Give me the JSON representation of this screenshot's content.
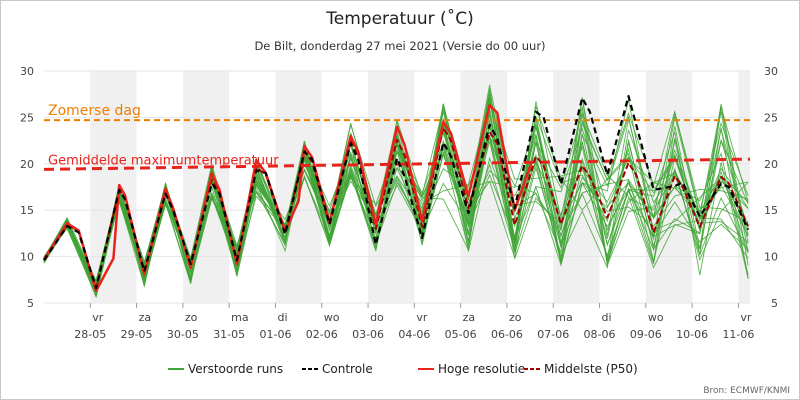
{
  "chart_data": {
    "type": "line",
    "title": "Temperatuur (˚C)",
    "subtitle": "De Bilt, donderdag 27 mei 2021 (Versie do 00 uur)",
    "source": "Bron: ECMWF/KNMI",
    "ylim": [
      5,
      30
    ],
    "y_ticks": [
      "5",
      "10",
      "15",
      "20",
      "25",
      "30"
    ],
    "x_range": [
      "2021-05-27T00:00",
      "2021-06-11T06:00"
    ],
    "grid": "horizontal",
    "legend_position": "bottom",
    "x_ticks": [
      {
        "date": "2021-05-28",
        "day": "vr",
        "label": "28-05"
      },
      {
        "date": "2021-05-29",
        "day": "za",
        "label": "29-05"
      },
      {
        "date": "2021-05-30",
        "day": "zo",
        "label": "30-05"
      },
      {
        "date": "2021-05-31",
        "day": "ma",
        "label": "31-05"
      },
      {
        "date": "2021-06-01",
        "day": "di",
        "label": "01-06"
      },
      {
        "date": "2021-06-02",
        "day": "wo",
        "label": "02-06"
      },
      {
        "date": "2021-06-03",
        "day": "do",
        "label": "03-06"
      },
      {
        "date": "2021-06-04",
        "day": "vr",
        "label": "04-06"
      },
      {
        "date": "2021-06-05",
        "day": "za",
        "label": "05-06"
      },
      {
        "date": "2021-06-06",
        "day": "zo",
        "label": "06-06"
      },
      {
        "date": "2021-06-07",
        "day": "ma",
        "label": "07-06"
      },
      {
        "date": "2021-06-08",
        "day": "di",
        "label": "08-06"
      },
      {
        "date": "2021-06-09",
        "day": "wo",
        "label": "09-06"
      },
      {
        "date": "2021-06-10",
        "day": "do",
        "label": "10-06"
      },
      {
        "date": "2021-06-11",
        "day": "vr",
        "label": "11-06"
      }
    ],
    "reference_lines": [
      {
        "label": "Zomerse dag",
        "color": "#f07d00",
        "style": "dashed",
        "start": 24.7,
        "end": 24.7
      },
      {
        "label": "Gemiddelde maximumtemperatuur",
        "color": "#e8231b",
        "style": "dashed",
        "start": 19.4,
        "end": 20.5
      }
    ],
    "hoge_resolutie": [
      {
        "x": "2021-05-27T00:00",
        "y": 9.7
      },
      {
        "x": "2021-05-27T12:00",
        "y": 13.6
      },
      {
        "x": "2021-05-27T18:00",
        "y": 12.8
      },
      {
        "x": "2021-05-28T03:00",
        "y": 6.3
      },
      {
        "x": "2021-05-28T12:00",
        "y": 9.8
      },
      {
        "x": "2021-05-28T15:00",
        "y": 17.7
      },
      {
        "x": "2021-05-28T18:00",
        "y": 16.6
      },
      {
        "x": "2021-05-29T04:00",
        "y": 8.1
      },
      {
        "x": "2021-05-29T15:00",
        "y": 17.3
      },
      {
        "x": "2021-05-29T19:00",
        "y": 15.2
      },
      {
        "x": "2021-05-30T04:00",
        "y": 8.8
      },
      {
        "x": "2021-05-30T15:00",
        "y": 19.0
      },
      {
        "x": "2021-05-30T19:00",
        "y": 17.2
      },
      {
        "x": "2021-05-31T04:00",
        "y": 9.2
      },
      {
        "x": "2021-05-31T14:00",
        "y": 20.4
      },
      {
        "x": "2021-05-31T19:00",
        "y": 19.0
      },
      {
        "x": "2021-06-01T05:00",
        "y": 12.7
      },
      {
        "x": "2021-06-01T12:00",
        "y": 16.0
      },
      {
        "x": "2021-06-01T15:00",
        "y": 21.9
      },
      {
        "x": "2021-06-01T19:00",
        "y": 20.7
      },
      {
        "x": "2021-06-02T04:00",
        "y": 13.7
      },
      {
        "x": "2021-06-02T15:00",
        "y": 23.0
      },
      {
        "x": "2021-06-02T19:00",
        "y": 21.2
      },
      {
        "x": "2021-06-03T04:00",
        "y": 13.5
      },
      {
        "x": "2021-06-03T15:00",
        "y": 24.0
      },
      {
        "x": "2021-06-03T19:00",
        "y": 22.0
      },
      {
        "x": "2021-06-04T04:00",
        "y": 13.8
      },
      {
        "x": "2021-06-04T15:00",
        "y": 24.5
      },
      {
        "x": "2021-06-04T19:00",
        "y": 23.3
      },
      {
        "x": "2021-06-05T04:00",
        "y": 16.5
      },
      {
        "x": "2021-06-05T15:00",
        "y": 26.3
      },
      {
        "x": "2021-06-05T19:00",
        "y": 25.5
      },
      {
        "x": "2021-06-06T04:00",
        "y": 15.0
      },
      {
        "x": "2021-06-06T13:00",
        "y": 20.3
      }
    ],
    "controle": [
      {
        "x": "2021-05-27T00:00",
        "y": 9.6
      },
      {
        "x": "2021-05-27T12:00",
        "y": 13.3
      },
      {
        "x": "2021-05-27T18:00",
        "y": 12.6
      },
      {
        "x": "2021-05-28T03:00",
        "y": 6.6
      },
      {
        "x": "2021-05-28T15:00",
        "y": 17.2
      },
      {
        "x": "2021-05-28T18:00",
        "y": 16.2
      },
      {
        "x": "2021-05-29T04:00",
        "y": 8.4
      },
      {
        "x": "2021-05-29T15:00",
        "y": 16.8
      },
      {
        "x": "2021-05-29T19:00",
        "y": 15.0
      },
      {
        "x": "2021-05-30T04:00",
        "y": 9.2
      },
      {
        "x": "2021-05-30T15:00",
        "y": 17.9
      },
      {
        "x": "2021-05-30T19:00",
        "y": 16.8
      },
      {
        "x": "2021-05-31T04:00",
        "y": 9.6
      },
      {
        "x": "2021-05-31T14:00",
        "y": 19.3
      },
      {
        "x": "2021-05-31T19:00",
        "y": 19.0
      },
      {
        "x": "2021-06-01T05:00",
        "y": 12.4
      },
      {
        "x": "2021-06-01T15:00",
        "y": 21.3
      },
      {
        "x": "2021-06-01T19:00",
        "y": 20.5
      },
      {
        "x": "2021-06-02T04:00",
        "y": 13.5
      },
      {
        "x": "2021-06-02T15:00",
        "y": 22.2
      },
      {
        "x": "2021-06-02T19:00",
        "y": 20.4
      },
      {
        "x": "2021-06-03T04:00",
        "y": 11.3
      },
      {
        "x": "2021-06-03T15:00",
        "y": 20.6
      },
      {
        "x": "2021-06-03T19:00",
        "y": 18.6
      },
      {
        "x": "2021-06-04T04:00",
        "y": 12.0
      },
      {
        "x": "2021-06-04T15:00",
        "y": 22.3
      },
      {
        "x": "2021-06-04T19:00",
        "y": 20.8
      },
      {
        "x": "2021-06-05T04:00",
        "y": 14.7
      },
      {
        "x": "2021-06-05T15:00",
        "y": 24.2
      },
      {
        "x": "2021-06-05T19:00",
        "y": 22.7
      },
      {
        "x": "2021-06-06T04:00",
        "y": 15.2
      },
      {
        "x": "2021-06-06T15:00",
        "y": 25.6
      },
      {
        "x": "2021-06-06T19:00",
        "y": 25.0
      },
      {
        "x": "2021-06-07T04:00",
        "y": 17.8
      },
      {
        "x": "2021-06-07T15:00",
        "y": 27.1
      },
      {
        "x": "2021-06-07T19:00",
        "y": 25.6
      },
      {
        "x": "2021-06-08T04:00",
        "y": 18.8
      },
      {
        "x": "2021-06-08T15:00",
        "y": 27.3
      },
      {
        "x": "2021-06-08T19:00",
        "y": 24.2
      },
      {
        "x": "2021-06-09T04:00",
        "y": 17.2
      },
      {
        "x": "2021-06-09T15:00",
        "y": 17.6
      },
      {
        "x": "2021-06-09T19:00",
        "y": 18.0
      },
      {
        "x": "2021-06-10T04:00",
        "y": 14.3
      },
      {
        "x": "2021-06-10T15:00",
        "y": 17.9
      },
      {
        "x": "2021-06-10T19:00",
        "y": 17.5
      },
      {
        "x": "2021-06-11T05:00",
        "y": 12.9
      }
    ],
    "middelste_p50": [
      {
        "x": "2021-05-27T00:00",
        "y": 9.6
      },
      {
        "x": "2021-05-27T12:00",
        "y": 13.4
      },
      {
        "x": "2021-05-27T18:00",
        "y": 12.8
      },
      {
        "x": "2021-05-28T03:00",
        "y": 6.5
      },
      {
        "x": "2021-05-28T15:00",
        "y": 17.2
      },
      {
        "x": "2021-05-28T18:00",
        "y": 16.2
      },
      {
        "x": "2021-05-29T04:00",
        "y": 8.3
      },
      {
        "x": "2021-05-29T15:00",
        "y": 16.9
      },
      {
        "x": "2021-05-29T19:00",
        "y": 15.0
      },
      {
        "x": "2021-05-30T04:00",
        "y": 9.0
      },
      {
        "x": "2021-05-30T15:00",
        "y": 18.3
      },
      {
        "x": "2021-05-30T19:00",
        "y": 16.8
      },
      {
        "x": "2021-05-31T04:00",
        "y": 9.5
      },
      {
        "x": "2021-05-31T14:00",
        "y": 19.6
      },
      {
        "x": "2021-05-31T19:00",
        "y": 18.8
      },
      {
        "x": "2021-06-01T05:00",
        "y": 12.6
      },
      {
        "x": "2021-06-01T15:00",
        "y": 21.4
      },
      {
        "x": "2021-06-01T19:00",
        "y": 20.2
      },
      {
        "x": "2021-06-02T04:00",
        "y": 13.4
      },
      {
        "x": "2021-06-02T15:00",
        "y": 22.7
      },
      {
        "x": "2021-06-02T19:00",
        "y": 20.8
      },
      {
        "x": "2021-06-03T04:00",
        "y": 13.0
      },
      {
        "x": "2021-06-03T15:00",
        "y": 22.6
      },
      {
        "x": "2021-06-03T19:00",
        "y": 20.9
      },
      {
        "x": "2021-06-04T04:00",
        "y": 13.2
      },
      {
        "x": "2021-06-04T15:00",
        "y": 23.9
      },
      {
        "x": "2021-06-04T19:00",
        "y": 22.5
      },
      {
        "x": "2021-06-05T04:00",
        "y": 15.2
      },
      {
        "x": "2021-06-05T15:00",
        "y": 23.4
      },
      {
        "x": "2021-06-05T19:00",
        "y": 22.2
      },
      {
        "x": "2021-06-06T04:00",
        "y": 13.4
      },
      {
        "x": "2021-06-06T15:00",
        "y": 20.8
      },
      {
        "x": "2021-06-06T19:00",
        "y": 19.8
      },
      {
        "x": "2021-06-07T04:00",
        "y": 13.5
      },
      {
        "x": "2021-06-07T15:00",
        "y": 19.8
      },
      {
        "x": "2021-06-07T19:00",
        "y": 18.6
      },
      {
        "x": "2021-06-08T04:00",
        "y": 14.2
      },
      {
        "x": "2021-06-08T15:00",
        "y": 20.1
      },
      {
        "x": "2021-06-08T19:00",
        "y": 18.8
      },
      {
        "x": "2021-06-09T04:00",
        "y": 12.6
      },
      {
        "x": "2021-06-09T15:00",
        "y": 18.7
      },
      {
        "x": "2021-06-09T19:00",
        "y": 17.5
      },
      {
        "x": "2021-06-10T04:00",
        "y": 13.2
      },
      {
        "x": "2021-06-10T15:00",
        "y": 18.6
      },
      {
        "x": "2021-06-10T19:00",
        "y": 17.9
      },
      {
        "x": "2021-06-11T05:00",
        "y": 13.3
      }
    ],
    "verstoorde_runs_envelope": [
      {
        "x": "2021-05-27T00:00",
        "min": 9.3,
        "max": 10.0
      },
      {
        "x": "2021-05-27T12:00",
        "min": 13.0,
        "max": 14.2
      },
      {
        "x": "2021-05-28T03:00",
        "min": 5.6,
        "max": 7.5
      },
      {
        "x": "2021-05-28T15:00",
        "min": 15.8,
        "max": 18.0
      },
      {
        "x": "2021-05-29T04:00",
        "min": 6.8,
        "max": 9.5
      },
      {
        "x": "2021-05-29T15:00",
        "min": 15.5,
        "max": 18.0
      },
      {
        "x": "2021-05-30T04:00",
        "min": 7.0,
        "max": 10.0
      },
      {
        "x": "2021-05-30T15:00",
        "min": 16.0,
        "max": 20.0
      },
      {
        "x": "2021-05-31T04:00",
        "min": 7.8,
        "max": 11.2
      },
      {
        "x": "2021-05-31T14:00",
        "min": 16.5,
        "max": 20.7
      },
      {
        "x": "2021-06-01T05:00",
        "min": 10.5,
        "max": 14.0
      },
      {
        "x": "2021-06-01T15:00",
        "min": 18.5,
        "max": 22.5
      },
      {
        "x": "2021-06-02T04:00",
        "min": 11.0,
        "max": 15.5
      },
      {
        "x": "2021-06-02T15:00",
        "min": 18.0,
        "max": 24.5
      },
      {
        "x": "2021-06-03T04:00",
        "min": 10.5,
        "max": 16.0
      },
      {
        "x": "2021-06-03T15:00",
        "min": 17.5,
        "max": 25.0
      },
      {
        "x": "2021-06-04T04:00",
        "min": 10.5,
        "max": 17.0
      },
      {
        "x": "2021-06-04T15:00",
        "min": 16.0,
        "max": 26.5
      },
      {
        "x": "2021-06-05T04:00",
        "min": 10.0,
        "max": 18.0
      },
      {
        "x": "2021-06-05T15:00",
        "min": 17.0,
        "max": 28.7
      },
      {
        "x": "2021-06-06T04:00",
        "min": 9.5,
        "max": 18.5
      },
      {
        "x": "2021-06-06T15:00",
        "min": 15.0,
        "max": 27.8
      },
      {
        "x": "2021-06-07T04:00",
        "min": 9.0,
        "max": 19.0
      },
      {
        "x": "2021-06-07T15:00",
        "min": 14.5,
        "max": 27.5
      },
      {
        "x": "2021-06-08T04:00",
        "min": 8.5,
        "max": 19.0
      },
      {
        "x": "2021-06-08T15:00",
        "min": 14.0,
        "max": 27.0
      },
      {
        "x": "2021-06-09T04:00",
        "min": 8.5,
        "max": 18.0
      },
      {
        "x": "2021-06-09T15:00",
        "min": 13.0,
        "max": 26.0
      },
      {
        "x": "2021-06-10T04:00",
        "min": 8.0,
        "max": 17.5
      },
      {
        "x": "2021-06-10T15:00",
        "min": 13.0,
        "max": 26.5
      },
      {
        "x": "2021-06-11T05:00",
        "min": 7.0,
        "max": 18.5
      }
    ],
    "legend": [
      {
        "key": "verstoorde",
        "label": "Verstoorde runs",
        "color": "#3fa535",
        "style": "solid"
      },
      {
        "key": "controle",
        "label": "Controle",
        "color": "#000000",
        "style": "dashed"
      },
      {
        "key": "hoge",
        "label": "Hoge resolutie",
        "color": "#e8231b",
        "style": "solid"
      },
      {
        "key": "p50",
        "label": "Middelste (P50)",
        "color": "#a00000",
        "style": "dashed"
      }
    ],
    "colors": {
      "runs": "#3fa535",
      "controle": "#000000",
      "hoge": "#e8231b",
      "p50": "#a00000",
      "stripe": "#f0f0f0",
      "grid": "#e6e6e6"
    }
  }
}
